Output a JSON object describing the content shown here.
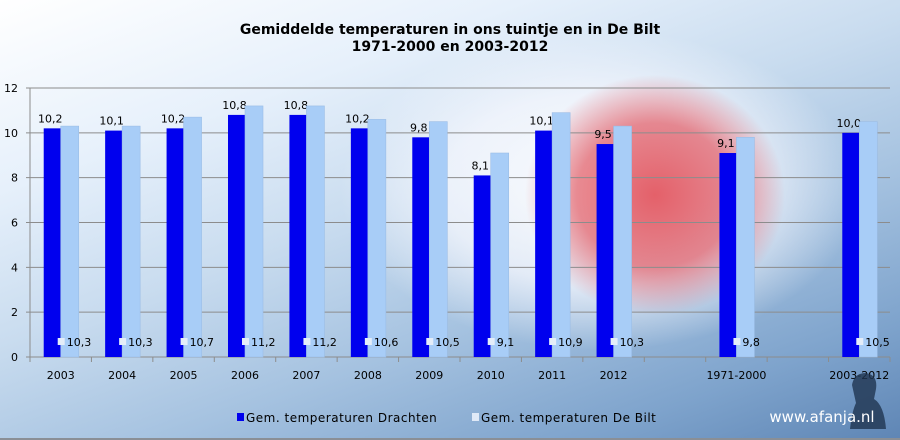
{
  "chart_data": {
    "type": "bar",
    "title": "Gemiddelde temperaturen in ons tuintje en in De Bilt",
    "subtitle": "1971-2000 en 2003-2012",
    "categories": [
      "2003",
      "2004",
      "2005",
      "2006",
      "2007",
      "2008",
      "2009",
      "2010",
      "2011",
      "2012",
      "",
      "1971-2000",
      "",
      "2003-2012"
    ],
    "series": [
      {
        "name": "Gem. temperaturen Drachten",
        "color": "#0000ee",
        "values": [
          10.2,
          10.1,
          10.2,
          10.8,
          10.8,
          10.2,
          9.8,
          8.1,
          10.1,
          9.5,
          null,
          9.1,
          null,
          10.0
        ],
        "labels": [
          "10,2",
          "10,1",
          "10,2",
          "10,8",
          "10,8",
          "10,2",
          "9,8",
          "8,1",
          "10,1",
          "9,5",
          "",
          "9,1",
          "",
          "10,0"
        ]
      },
      {
        "name": "Gem. temperaturen De Bilt",
        "color": "#a8cdf7",
        "values": [
          10.3,
          10.3,
          10.7,
          11.2,
          11.2,
          10.6,
          10.5,
          9.1,
          10.9,
          10.3,
          null,
          9.8,
          null,
          10.5
        ],
        "labels": [
          "10,3",
          "10,3",
          "10,7",
          "11,2",
          "11,2",
          "10,6",
          "10,5",
          "9,1",
          "10,9",
          "10,3",
          "",
          "9,8",
          "",
          "10,5"
        ]
      }
    ],
    "ylim": [
      0,
      12
    ],
    "yticks": [
      "0",
      "2",
      "4",
      "6",
      "8",
      "10",
      "12"
    ],
    "grid": true,
    "legend": "bottom"
  },
  "watermark": "www.afanja.nl"
}
